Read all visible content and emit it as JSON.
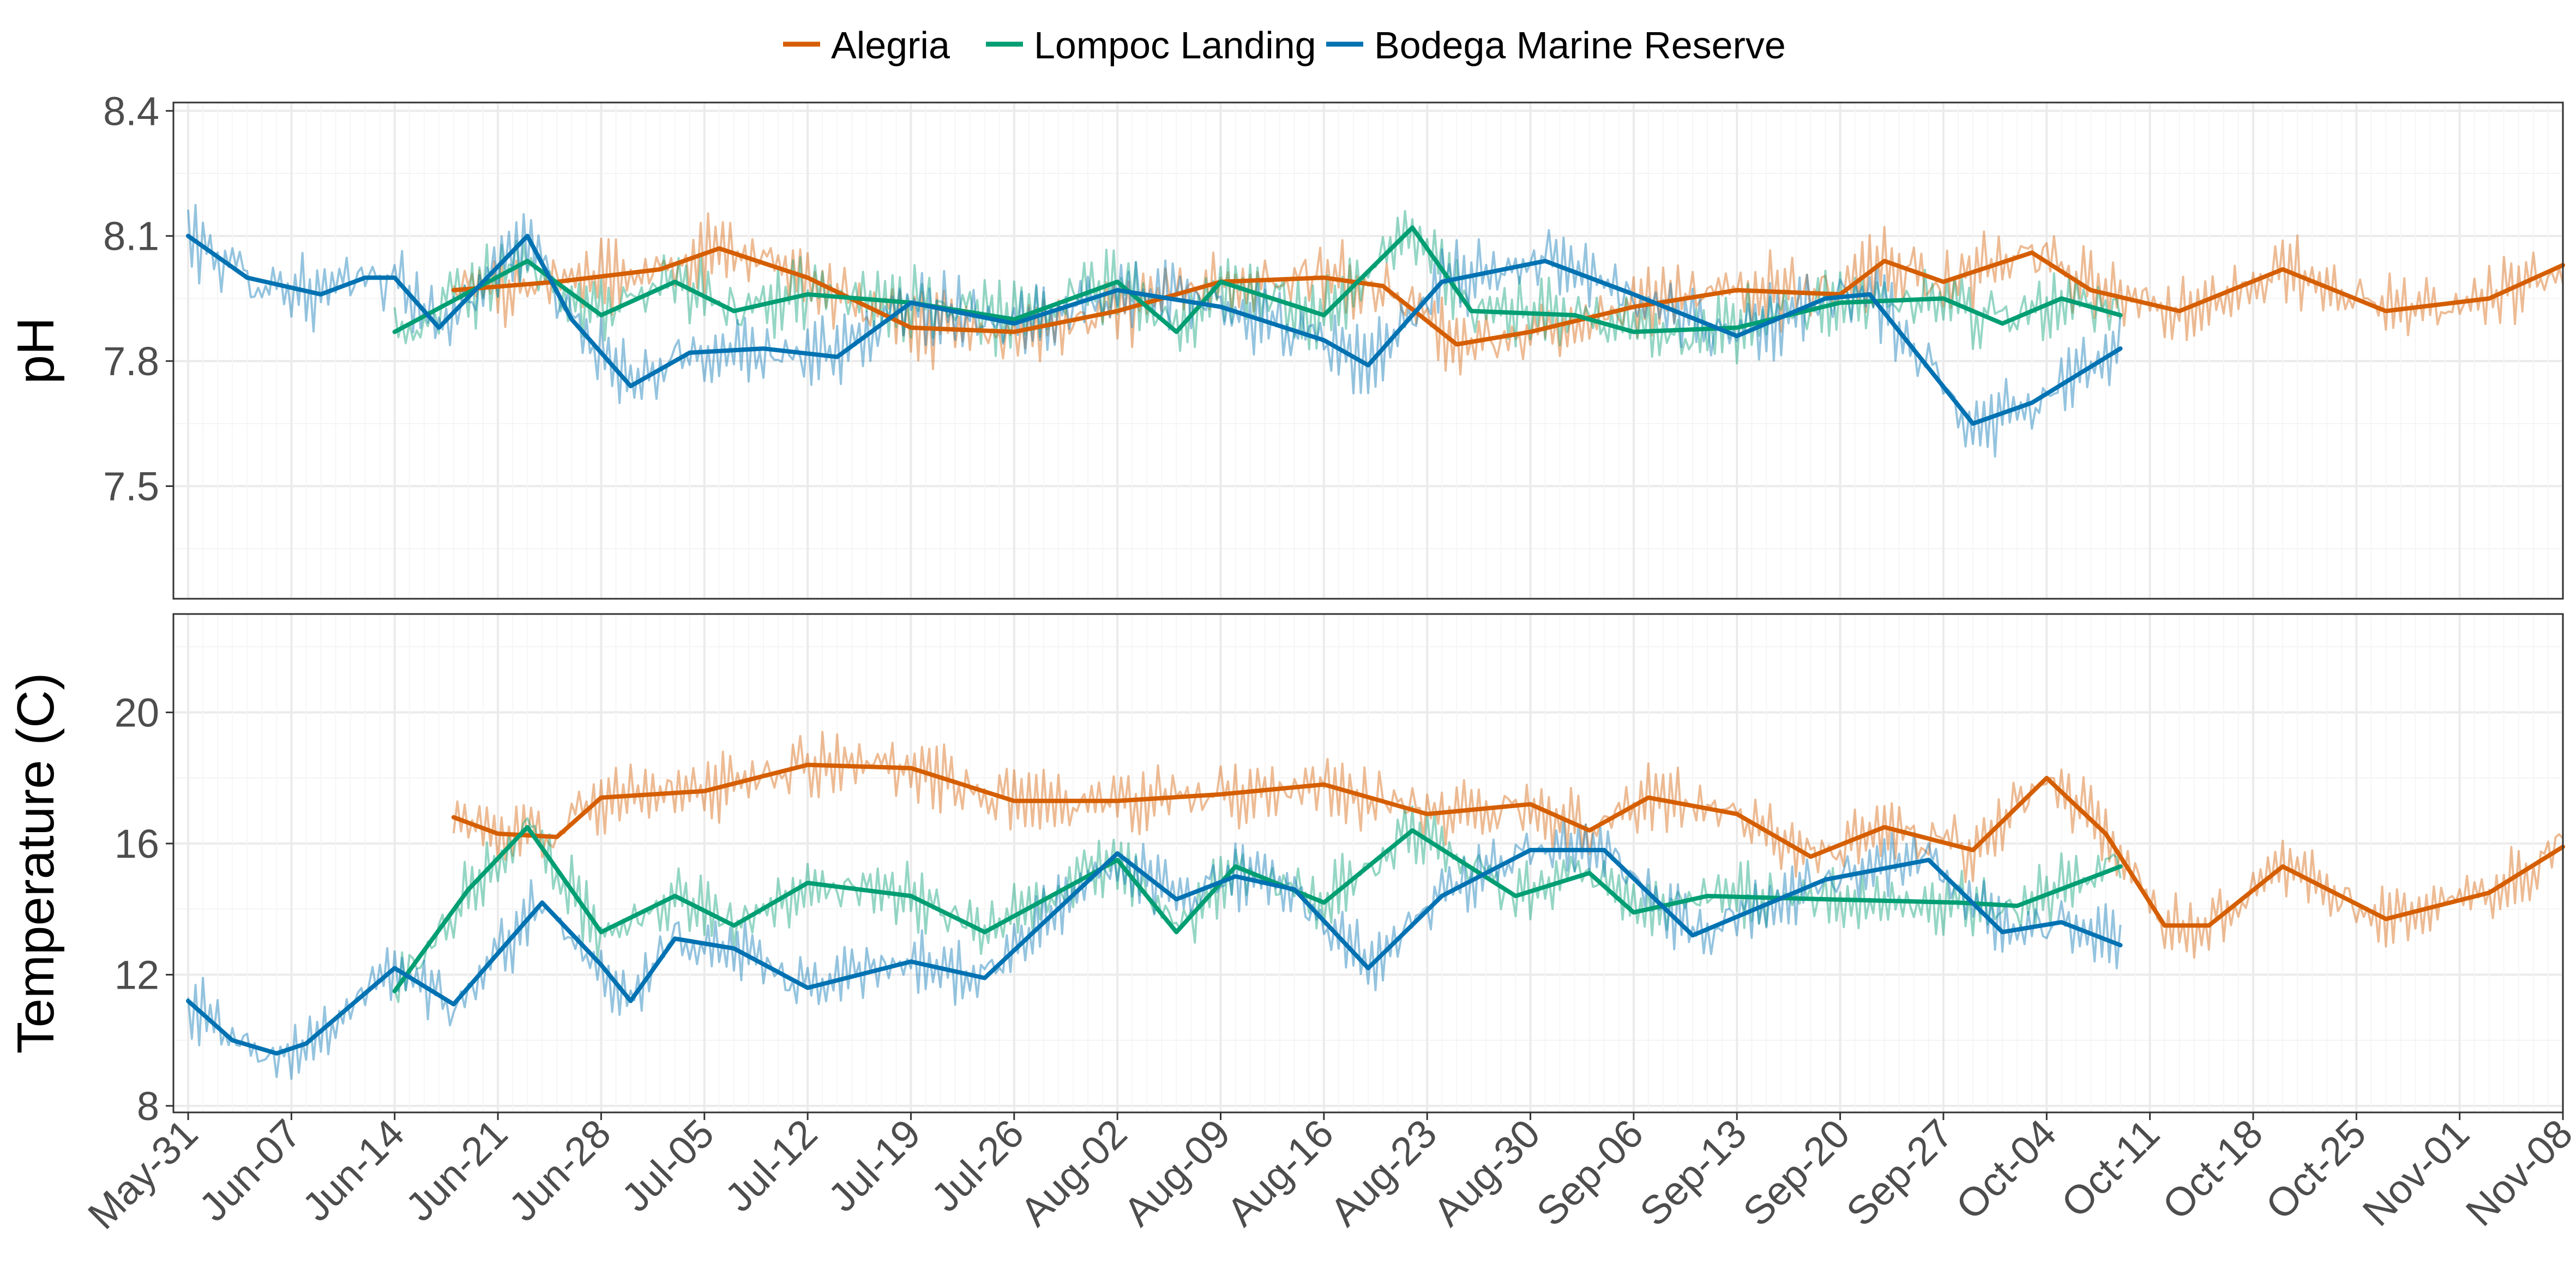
{
  "legend": {
    "position": "top",
    "entries": [
      {
        "name": "Alegria",
        "color": "#D55E00"
      },
      {
        "name": "Lompoc Landing",
        "color": "#009E73"
      },
      {
        "name": "Bodega Marine Reserve",
        "color": "#0072B2"
      }
    ]
  },
  "x_axis": {
    "type": "date",
    "range": [
      "2018-05-30",
      "2018-11-08"
    ],
    "tick_labels": [
      "May-31",
      "Jun-07",
      "Jun-14",
      "Jun-21",
      "Jun-28",
      "Jul-05",
      "Jul-12",
      "Jul-19",
      "Jul-26",
      "Aug-02",
      "Aug-09",
      "Aug-16",
      "Aug-23",
      "Aug-30",
      "Sep-06",
      "Sep-13",
      "Sep-20",
      "Sep-27",
      "Oct-04",
      "Oct-11",
      "Oct-18",
      "Oct-25",
      "Nov-01",
      "Nov-08"
    ],
    "tick_dates": [
      "2018-05-31",
      "2018-06-07",
      "2018-06-14",
      "2018-06-21",
      "2018-06-28",
      "2018-07-05",
      "2018-07-12",
      "2018-07-19",
      "2018-07-26",
      "2018-08-02",
      "2018-08-09",
      "2018-08-16",
      "2018-08-23",
      "2018-08-30",
      "2018-09-06",
      "2018-09-13",
      "2018-09-20",
      "2018-09-27",
      "2018-10-04",
      "2018-10-11",
      "2018-10-18",
      "2018-10-25",
      "2018-11-01",
      "2018-11-08"
    ]
  },
  "chart_data": [
    {
      "type": "line",
      "ylabel": "pH",
      "ylim": [
        7.23,
        8.42
      ],
      "yticks": [
        7.5,
        7.8,
        8.1,
        8.4
      ],
      "grid": true,
      "series": [
        {
          "name": "Alegria",
          "color": "#D55E00",
          "x": [
            "2018-06-18",
            "2018-06-25",
            "2018-07-02",
            "2018-07-06",
            "2018-07-12",
            "2018-07-19",
            "2018-07-26",
            "2018-08-02",
            "2018-08-09",
            "2018-08-16",
            "2018-08-20",
            "2018-08-25",
            "2018-08-30",
            "2018-09-06",
            "2018-09-13",
            "2018-09-20",
            "2018-09-23",
            "2018-09-27",
            "2018-10-03",
            "2018-10-07",
            "2018-10-13",
            "2018-10-20",
            "2018-10-27",
            "2018-11-03",
            "2018-11-08"
          ],
          "y": [
            7.97,
            7.99,
            8.02,
            8.07,
            8.0,
            7.88,
            7.87,
            7.92,
            7.99,
            8.0,
            7.98,
            7.84,
            7.87,
            7.93,
            7.97,
            7.96,
            8.04,
            7.99,
            8.06,
            7.97,
            7.92,
            8.02,
            7.92,
            7.95,
            8.03
          ]
        },
        {
          "name": "Lompoc Landing",
          "color": "#009E73",
          "x": [
            "2018-06-14",
            "2018-06-23",
            "2018-06-28",
            "2018-07-03",
            "2018-07-07",
            "2018-07-12",
            "2018-07-19",
            "2018-07-26",
            "2018-08-02",
            "2018-08-06",
            "2018-08-09",
            "2018-08-16",
            "2018-08-22",
            "2018-08-26",
            "2018-09-02",
            "2018-09-06",
            "2018-09-13",
            "2018-09-20",
            "2018-09-27",
            "2018-10-01",
            "2018-10-05",
            "2018-10-09"
          ],
          "y": [
            7.87,
            8.04,
            7.91,
            7.99,
            7.92,
            7.96,
            7.94,
            7.9,
            7.99,
            7.87,
            7.99,
            7.91,
            8.12,
            7.92,
            7.91,
            7.87,
            7.88,
            7.94,
            7.95,
            7.89,
            7.95,
            7.91
          ]
        },
        {
          "name": "Bodega Marine Reserve",
          "color": "#0072B2",
          "x": [
            "2018-05-31",
            "2018-06-04",
            "2018-06-09",
            "2018-06-12",
            "2018-06-14",
            "2018-06-17",
            "2018-06-23",
            "2018-06-26",
            "2018-06-30",
            "2018-07-04",
            "2018-07-09",
            "2018-07-14",
            "2018-07-19",
            "2018-07-26",
            "2018-08-02",
            "2018-08-09",
            "2018-08-16",
            "2018-08-19",
            "2018-08-24",
            "2018-08-31",
            "2018-09-06",
            "2018-09-13",
            "2018-09-19",
            "2018-09-22",
            "2018-09-29",
            "2018-10-03",
            "2018-10-09"
          ],
          "y": [
            8.1,
            8.0,
            7.96,
            8.0,
            8.0,
            7.88,
            8.1,
            7.9,
            7.74,
            7.82,
            7.83,
            7.81,
            7.94,
            7.89,
            7.97,
            7.93,
            7.85,
            7.79,
            7.99,
            8.04,
            7.96,
            7.86,
            7.95,
            7.96,
            7.65,
            7.7,
            7.83
          ]
        }
      ]
    },
    {
      "type": "line",
      "ylabel": "Temperature (C)",
      "ylim": [
        7.8,
        23.0
      ],
      "yticks": [
        8,
        12,
        16,
        20
      ],
      "grid": true,
      "series": [
        {
          "name": "Alegria",
          "color": "#D55E00",
          "x": [
            "2018-06-18",
            "2018-06-21",
            "2018-06-25",
            "2018-06-28",
            "2018-07-05",
            "2018-07-12",
            "2018-07-19",
            "2018-07-26",
            "2018-08-02",
            "2018-08-09",
            "2018-08-16",
            "2018-08-23",
            "2018-08-30",
            "2018-09-03",
            "2018-09-07",
            "2018-09-13",
            "2018-09-18",
            "2018-09-23",
            "2018-09-29",
            "2018-10-04",
            "2018-10-08",
            "2018-10-12",
            "2018-10-15",
            "2018-10-20",
            "2018-10-27",
            "2018-11-03",
            "2018-11-08"
          ],
          "y": [
            16.8,
            16.3,
            16.2,
            17.4,
            17.6,
            18.4,
            18.3,
            17.3,
            17.3,
            17.5,
            17.8,
            16.9,
            17.2,
            16.4,
            17.4,
            16.9,
            15.6,
            16.5,
            15.8,
            18.0,
            16.3,
            13.5,
            13.5,
            15.3,
            13.7,
            14.5,
            15.9
          ]
        },
        {
          "name": "Lompoc Landing",
          "color": "#009E73",
          "x": [
            "2018-06-14",
            "2018-06-19",
            "2018-06-23",
            "2018-06-28",
            "2018-07-03",
            "2018-07-07",
            "2018-07-12",
            "2018-07-19",
            "2018-07-24",
            "2018-08-02",
            "2018-08-06",
            "2018-08-10",
            "2018-08-16",
            "2018-08-22",
            "2018-08-29",
            "2018-09-03",
            "2018-09-06",
            "2018-09-11",
            "2018-09-19",
            "2018-09-28",
            "2018-10-02",
            "2018-10-09"
          ],
          "y": [
            11.5,
            14.6,
            16.5,
            13.3,
            14.4,
            13.5,
            14.8,
            14.4,
            13.3,
            15.5,
            13.3,
            15.3,
            14.2,
            16.4,
            14.4,
            15.1,
            13.9,
            14.4,
            14.3,
            14.2,
            14.1,
            15.3
          ]
        },
        {
          "name": "Bodega Marine Reserve",
          "color": "#0072B2",
          "x": [
            "2018-05-31",
            "2018-06-03",
            "2018-06-06",
            "2018-06-08",
            "2018-06-14",
            "2018-06-18",
            "2018-06-24",
            "2018-06-28",
            "2018-06-30",
            "2018-07-03",
            "2018-07-07",
            "2018-07-12",
            "2018-07-19",
            "2018-07-24",
            "2018-08-02",
            "2018-08-06",
            "2018-08-10",
            "2018-08-14",
            "2018-08-19",
            "2018-08-24",
            "2018-08-30",
            "2018-09-04",
            "2018-09-10",
            "2018-09-19",
            "2018-09-26",
            "2018-10-01",
            "2018-10-05",
            "2018-10-09"
          ],
          "y": [
            11.2,
            10.0,
            9.6,
            9.9,
            12.2,
            11.1,
            14.2,
            12.3,
            11.2,
            13.1,
            12.8,
            11.6,
            12.4,
            11.9,
            15.7,
            14.3,
            15.0,
            14.6,
            12.2,
            14.4,
            15.8,
            15.8,
            13.2,
            14.9,
            15.5,
            13.3,
            13.6,
            12.9
          ]
        }
      ]
    }
  ]
}
